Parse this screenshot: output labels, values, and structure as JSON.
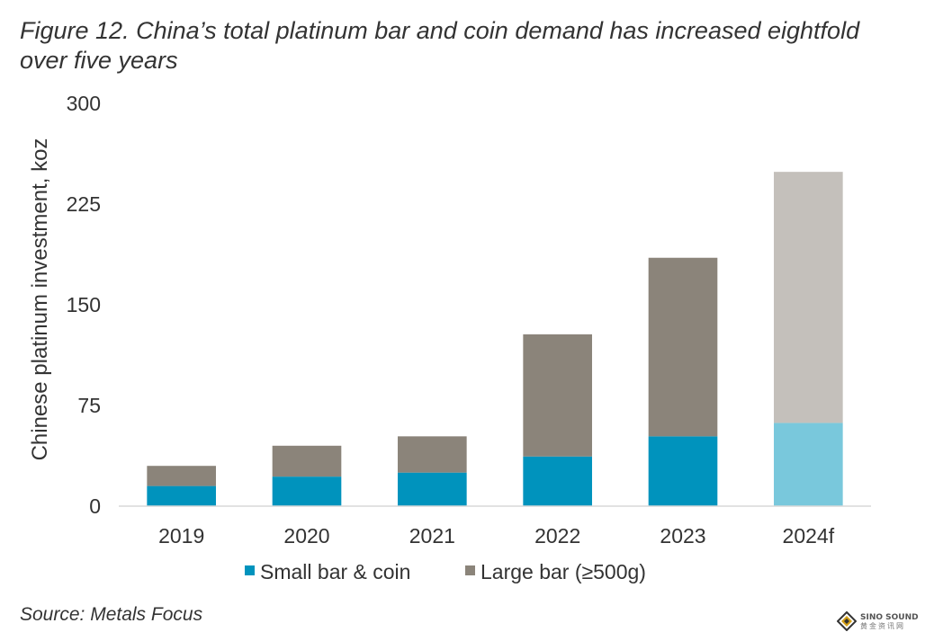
{
  "figure": {
    "title": "Figure 12. China’s total platinum bar and coin demand has increased eightfold over five years",
    "source": "Source: Metals Focus"
  },
  "watermark": {
    "name": "SINO SOUND",
    "sub": "黄金资讯网"
  },
  "chart_data": {
    "type": "bar",
    "stacked": true,
    "title": "Figure 12. China’s total platinum bar and coin demand has increased eightfold over five years",
    "xlabel": "",
    "ylabel": "Chinese platinum investment, koz",
    "ylim": [
      0,
      300
    ],
    "yticks": [
      0,
      75,
      150,
      225,
      300
    ],
    "grid": false,
    "legend_position": "bottom",
    "categories": [
      "2019",
      "2020",
      "2021",
      "2022",
      "2023",
      "2024f"
    ],
    "forecast_categories": [
      "2024f"
    ],
    "series": [
      {
        "name": "Small bar & coin",
        "color": "#0093bd",
        "forecast_color": "#79c8dc",
        "values": [
          15,
          22,
          25,
          37,
          52,
          62
        ]
      },
      {
        "name": "Large bar (≥500g)",
        "color": "#8b847a",
        "forecast_color": "#c4c0bb",
        "values": [
          15,
          23,
          27,
          91,
          133,
          187
        ]
      }
    ]
  }
}
